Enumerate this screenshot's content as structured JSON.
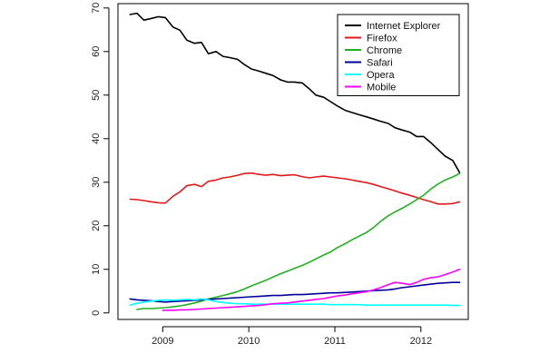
{
  "chart_data": {
    "type": "line",
    "title": "",
    "xlabel": "",
    "ylabel": "",
    "xlim": [
      2008.48,
      2012.55
    ],
    "ylim": [
      -1.5,
      71
    ],
    "x_ticks": [
      2009,
      2010,
      2011,
      2012
    ],
    "x_tick_labels": [
      "2009",
      "2010",
      "2011",
      "2012"
    ],
    "y_ticks": [
      0,
      10,
      20,
      30,
      40,
      50,
      60,
      70
    ],
    "y_tick_labels": [
      "0",
      "10",
      "20",
      "30",
      "40",
      "50",
      "60",
      "70"
    ],
    "grid": false,
    "legend": {
      "placement": "top-right",
      "entries": [
        "Internet Explorer",
        "Firefox",
        "Chrome",
        "Safari",
        "Opera",
        "Mobile"
      ]
    },
    "series": [
      {
        "name": "Internet Explorer",
        "color": "#000000",
        "x": [
          2008.62,
          2008.7,
          2008.78,
          2008.87,
          2008.95,
          2009.03,
          2009.12,
          2009.2,
          2009.28,
          2009.37,
          2009.45,
          2009.53,
          2009.62,
          2009.7,
          2009.78,
          2009.87,
          2009.95,
          2010.03,
          2010.12,
          2010.2,
          2010.28,
          2010.37,
          2010.45,
          2010.53,
          2010.62,
          2010.7,
          2010.78,
          2010.87,
          2010.95,
          2011.03,
          2011.12,
          2011.2,
          2011.28,
          2011.37,
          2011.45,
          2011.53,
          2011.62,
          2011.7,
          2011.78,
          2011.87,
          2011.95,
          2012.03,
          2012.12,
          2012.2,
          2012.28,
          2012.37,
          2012.45
        ],
        "y": [
          68.5,
          68.8,
          67.2,
          67.6,
          68.0,
          67.8,
          65.6,
          64.9,
          62.6,
          61.9,
          62.1,
          59.5,
          60.0,
          58.9,
          58.6,
          58.2,
          57.0,
          56.0,
          55.5,
          55.0,
          54.5,
          53.5,
          53.0,
          53.0,
          52.8,
          51.5,
          50.0,
          49.5,
          48.5,
          47.5,
          46.5,
          46.0,
          45.5,
          45.0,
          44.5,
          44.0,
          43.5,
          42.5,
          42.0,
          41.5,
          40.5,
          40.5,
          39.0,
          37.5,
          36.0,
          35.0,
          32.2
        ]
      },
      {
        "name": "Firefox",
        "color": "#e31a1c",
        "x": [
          2008.62,
          2008.7,
          2008.78,
          2008.87,
          2008.95,
          2009.03,
          2009.12,
          2009.2,
          2009.28,
          2009.37,
          2009.45,
          2009.53,
          2009.62,
          2009.7,
          2009.78,
          2009.87,
          2009.95,
          2010.03,
          2010.12,
          2010.2,
          2010.28,
          2010.37,
          2010.45,
          2010.53,
          2010.62,
          2010.7,
          2010.78,
          2010.87,
          2010.95,
          2011.03,
          2011.12,
          2011.2,
          2011.28,
          2011.37,
          2011.45,
          2011.53,
          2011.62,
          2011.7,
          2011.78,
          2011.87,
          2011.95,
          2012.03,
          2012.12,
          2012.2,
          2012.28,
          2012.37,
          2012.45
        ],
        "y": [
          26.1,
          26.0,
          25.8,
          25.5,
          25.3,
          25.2,
          26.8,
          27.8,
          29.2,
          29.5,
          29.0,
          30.2,
          30.5,
          31.0,
          31.2,
          31.6,
          32.0,
          32.1,
          31.8,
          31.6,
          31.8,
          31.5,
          31.6,
          31.7,
          31.3,
          31.0,
          31.2,
          31.4,
          31.2,
          31.0,
          30.8,
          30.5,
          30.2,
          29.9,
          29.5,
          29.0,
          28.5,
          28.0,
          27.5,
          27.0,
          26.5,
          26.0,
          25.5,
          25.0,
          25.0,
          25.1,
          25.5
        ]
      },
      {
        "name": "Chrome",
        "color": "#22b022",
        "x": [
          2008.7,
          2008.78,
          2008.87,
          2008.95,
          2009.03,
          2009.12,
          2009.2,
          2009.28,
          2009.37,
          2009.45,
          2009.53,
          2009.62,
          2009.7,
          2009.78,
          2009.87,
          2009.95,
          2010.03,
          2010.12,
          2010.2,
          2010.28,
          2010.37,
          2010.45,
          2010.53,
          2010.62,
          2010.7,
          2010.78,
          2010.87,
          2010.95,
          2011.03,
          2011.12,
          2011.2,
          2011.28,
          2011.37,
          2011.45,
          2011.53,
          2011.62,
          2011.7,
          2011.78,
          2011.87,
          2011.95,
          2012.03,
          2012.12,
          2012.2,
          2012.28,
          2012.37,
          2012.45
        ],
        "y": [
          0.8,
          1.0,
          1.0,
          1.1,
          1.2,
          1.4,
          1.6,
          1.9,
          2.3,
          2.7,
          3.2,
          3.6,
          4.0,
          4.4,
          4.9,
          5.5,
          6.2,
          6.9,
          7.5,
          8.2,
          9.0,
          9.6,
          10.2,
          10.9,
          11.6,
          12.4,
          13.3,
          14.0,
          15.0,
          15.9,
          16.8,
          17.6,
          18.5,
          19.6,
          21.0,
          22.3,
          23.2,
          24.0,
          25.0,
          26.0,
          27.0,
          28.5,
          29.6,
          30.5,
          31.2,
          32.0
        ]
      },
      {
        "name": "Safari",
        "color": "#000099",
        "x": [
          2008.62,
          2008.7,
          2008.78,
          2008.87,
          2008.95,
          2009.03,
          2009.12,
          2009.2,
          2009.28,
          2009.37,
          2009.45,
          2009.53,
          2009.62,
          2009.7,
          2009.78,
          2009.87,
          2009.95,
          2010.03,
          2010.12,
          2010.2,
          2010.28,
          2010.37,
          2010.45,
          2010.53,
          2010.62,
          2010.7,
          2010.78,
          2010.87,
          2010.95,
          2011.03,
          2011.12,
          2011.2,
          2011.28,
          2011.37,
          2011.45,
          2011.53,
          2011.62,
          2011.7,
          2011.78,
          2011.87,
          2011.95,
          2012.03,
          2012.12,
          2012.2,
          2012.28,
          2012.37,
          2012.45
        ],
        "y": [
          3.2,
          3.0,
          2.9,
          2.8,
          2.6,
          2.5,
          2.6,
          2.7,
          2.8,
          2.9,
          3.0,
          3.1,
          3.2,
          3.3,
          3.4,
          3.5,
          3.6,
          3.7,
          3.8,
          3.9,
          4.0,
          4.0,
          4.1,
          4.2,
          4.2,
          4.3,
          4.4,
          4.5,
          4.6,
          4.6,
          4.7,
          4.8,
          4.9,
          5.0,
          5.1,
          5.2,
          5.3,
          5.5,
          5.8,
          6.0,
          6.2,
          6.4,
          6.6,
          6.8,
          6.9,
          7.0,
          7.0
        ]
      },
      {
        "name": "Opera",
        "color": "#00ffff",
        "x": [
          2008.62,
          2008.7,
          2008.78,
          2008.87,
          2008.95,
          2009.03,
          2009.12,
          2009.2,
          2009.28,
          2009.37,
          2009.45,
          2009.53,
          2009.62,
          2009.7,
          2009.78,
          2009.87,
          2009.95,
          2010.03,
          2010.12,
          2010.2,
          2010.28,
          2010.37,
          2010.45,
          2010.53,
          2010.62,
          2010.7,
          2010.78,
          2010.87,
          2010.95,
          2011.03,
          2011.12,
          2011.2,
          2011.28,
          2011.37,
          2011.45,
          2011.53,
          2011.62,
          2011.7,
          2011.78,
          2011.87,
          2011.95,
          2012.03,
          2012.12,
          2012.2,
          2012.28,
          2012.37,
          2012.45
        ],
        "y": [
          1.8,
          2.2,
          2.5,
          2.7,
          2.9,
          3.0,
          2.9,
          3.0,
          3.1,
          3.0,
          3.2,
          3.0,
          2.6,
          2.4,
          2.2,
          2.1,
          2.1,
          2.0,
          2.0,
          2.0,
          2.0,
          2.0,
          2.0,
          2.0,
          2.0,
          2.0,
          2.0,
          2.0,
          1.9,
          1.9,
          1.9,
          1.9,
          1.9,
          1.8,
          1.8,
          1.8,
          1.8,
          1.8,
          1.8,
          1.8,
          1.8,
          1.8,
          1.8,
          1.8,
          1.8,
          1.7,
          1.7
        ]
      },
      {
        "name": "Mobile",
        "color": "#ff00ff",
        "x": [
          2009.0,
          2009.12,
          2009.2,
          2009.28,
          2009.37,
          2009.45,
          2009.53,
          2009.62,
          2009.7,
          2009.78,
          2009.87,
          2009.95,
          2010.03,
          2010.12,
          2010.2,
          2010.28,
          2010.37,
          2010.45,
          2010.53,
          2010.62,
          2010.7,
          2010.78,
          2010.87,
          2010.95,
          2011.03,
          2011.12,
          2011.2,
          2011.28,
          2011.37,
          2011.45,
          2011.53,
          2011.62,
          2011.7,
          2011.78,
          2011.87,
          2011.95,
          2012.03,
          2012.12,
          2012.2,
          2012.28,
          2012.37,
          2012.45
        ],
        "y": [
          0.6,
          0.6,
          0.7,
          0.7,
          0.8,
          0.9,
          1.0,
          1.1,
          1.2,
          1.3,
          1.4,
          1.5,
          1.6,
          1.7,
          1.9,
          2.1,
          2.2,
          2.3,
          2.5,
          2.7,
          2.9,
          3.1,
          3.3,
          3.6,
          3.9,
          4.1,
          4.4,
          4.6,
          4.9,
          5.3,
          5.8,
          6.5,
          7.0,
          6.8,
          6.5,
          7.0,
          7.7,
          8.1,
          8.3,
          8.8,
          9.4,
          10.0
        ]
      }
    ]
  }
}
